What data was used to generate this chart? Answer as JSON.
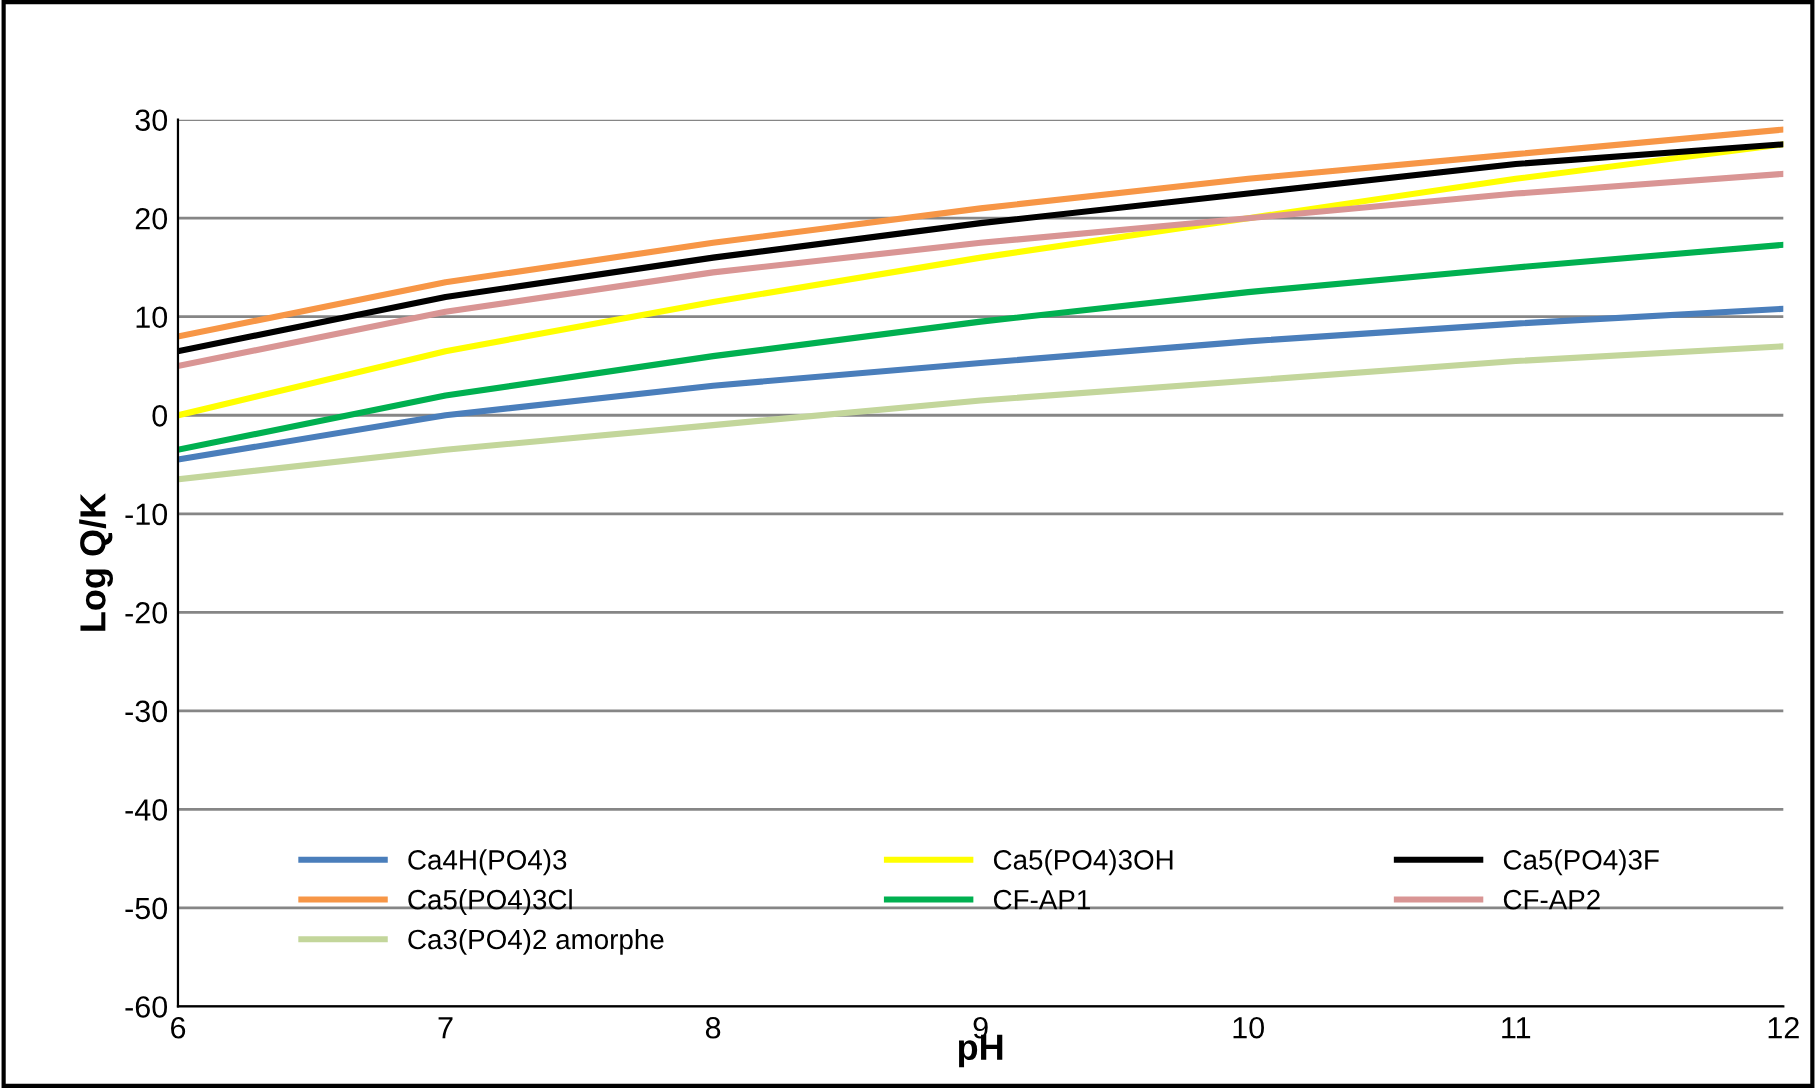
{
  "chart_data": {
    "type": "line",
    "xlabel": "pH",
    "ylabel": "Log Q/K",
    "x": [
      6,
      7,
      8,
      9,
      10,
      11,
      12
    ],
    "series": [
      {
        "name": "Ca4H(PO4)3",
        "color": "#4a7ebb",
        "values": [
          -4.5,
          0,
          3,
          5.3,
          7.5,
          9.3,
          10.8
        ]
      },
      {
        "name": "Ca5(PO4)3OH",
        "color": "#ffff00",
        "values": [
          0,
          6.5,
          11.5,
          16,
          20,
          24,
          27.5
        ]
      },
      {
        "name": "Ca5(PO4)3F",
        "color": "#000000",
        "values": [
          6.5,
          12,
          16,
          19.5,
          22.5,
          25.5,
          27.5
        ]
      },
      {
        "name": "Ca5(PO4)3Cl",
        "color": "#f79646",
        "values": [
          8,
          13.5,
          17.5,
          21,
          24,
          26.5,
          29
        ]
      },
      {
        "name": "CF-AP1",
        "color": "#00b050",
        "values": [
          -3.5,
          2,
          6,
          9.5,
          12.5,
          15,
          17.3
        ]
      },
      {
        "name": "CF-AP2",
        "color": "#d99594",
        "values": [
          5,
          10.5,
          14.5,
          17.5,
          20,
          22.5,
          24.5
        ]
      },
      {
        "name": "Ca3(PO4)2 amorphe",
        "color": "#c3d69b",
        "values": [
          -6.5,
          -3.5,
          -1,
          1.5,
          3.5,
          5.5,
          7
        ]
      }
    ],
    "xlim": [
      6,
      12
    ],
    "xticks": [
      6,
      7,
      8,
      9,
      10,
      11,
      12
    ],
    "ylim": [
      -60,
      30
    ],
    "yticks": [
      -60,
      -50,
      -40,
      -30,
      -20,
      -10,
      0,
      10,
      20,
      30
    ],
    "grid": "y",
    "legend": "bottom",
    "marker": "none",
    "line_style": "solid"
  }
}
